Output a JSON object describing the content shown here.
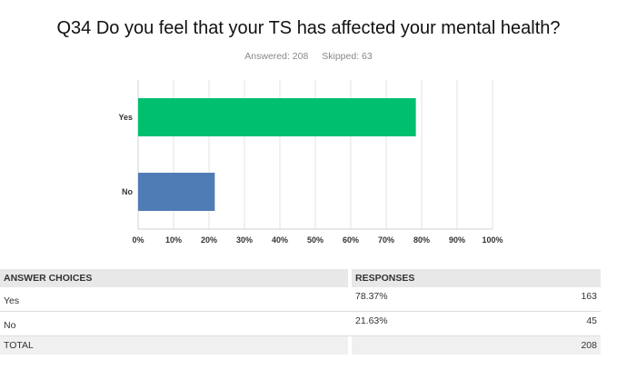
{
  "question": {
    "title": "Q34 Do you feel that your TS has affected your mental health?",
    "answered": "Answered: 208",
    "skipped": "Skipped: 63"
  },
  "chart_data": {
    "type": "bar",
    "orientation": "horizontal",
    "categories": [
      "Yes",
      "No"
    ],
    "values": [
      78.37,
      21.63
    ],
    "colors": [
      "#00bf6f",
      "#507cb6"
    ],
    "xlim": [
      0,
      100
    ],
    "xticks": [
      "0%",
      "10%",
      "20%",
      "30%",
      "40%",
      "50%",
      "60%",
      "70%",
      "80%",
      "90%",
      "100%"
    ],
    "grid": true
  },
  "table": {
    "headers": [
      "ANSWER CHOICES",
      "RESPONSES"
    ],
    "rows": [
      {
        "choice": "Yes",
        "percent": "78.37%",
        "count": "163"
      },
      {
        "choice": "No",
        "percent": "21.63%",
        "count": "45"
      }
    ],
    "total_label": "TOTAL",
    "total_count": "208"
  }
}
